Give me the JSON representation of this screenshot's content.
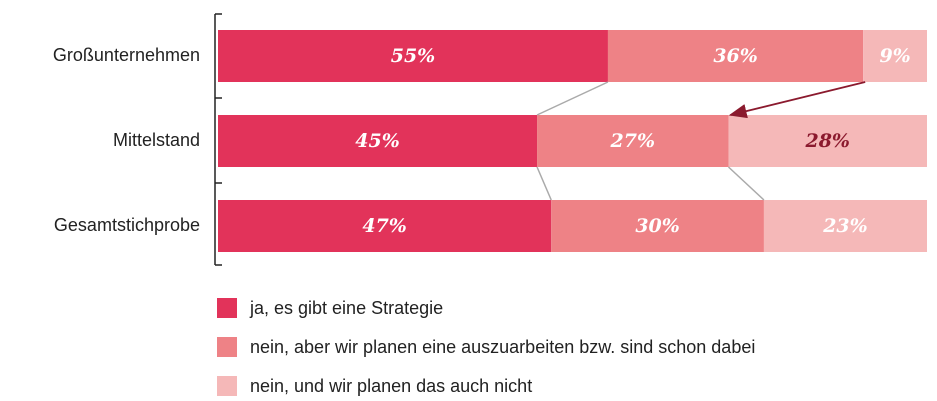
{
  "chart_data": {
    "type": "stacked-barh",
    "categories": [
      "Großunternehmen",
      "Mittelstand",
      "Gesamtstichprobe"
    ],
    "xlim": [
      0,
      100
    ],
    "series": [
      {
        "name": "ja, es gibt eine Strategie",
        "color": "#e2335a",
        "values": [
          55,
          45,
          47
        ],
        "value_labels": [
          "55%",
          "45%",
          "47%"
        ],
        "label_colors": [
          "#ffffff",
          "#ffffff",
          "#ffffff"
        ]
      },
      {
        "name": "nein, aber wir planen eine auszuarbeiten bzw. sind schon dabei",
        "color": "#ee8286",
        "values": [
          36,
          27,
          30
        ],
        "value_labels": [
          "36%",
          "27%",
          "30%"
        ],
        "label_colors": [
          "#ffffff",
          "#ffffff",
          "#ffffff"
        ]
      },
      {
        "name": "nein, und wir planen das auch nicht",
        "color": "#f5b8b8",
        "values": [
          9,
          28,
          23
        ],
        "value_labels": [
          "9%",
          "28%",
          "23%"
        ],
        "label_colors": [
          "#ffffff",
          "#8b1a2e",
          "#ffffff"
        ]
      }
    ]
  }
}
